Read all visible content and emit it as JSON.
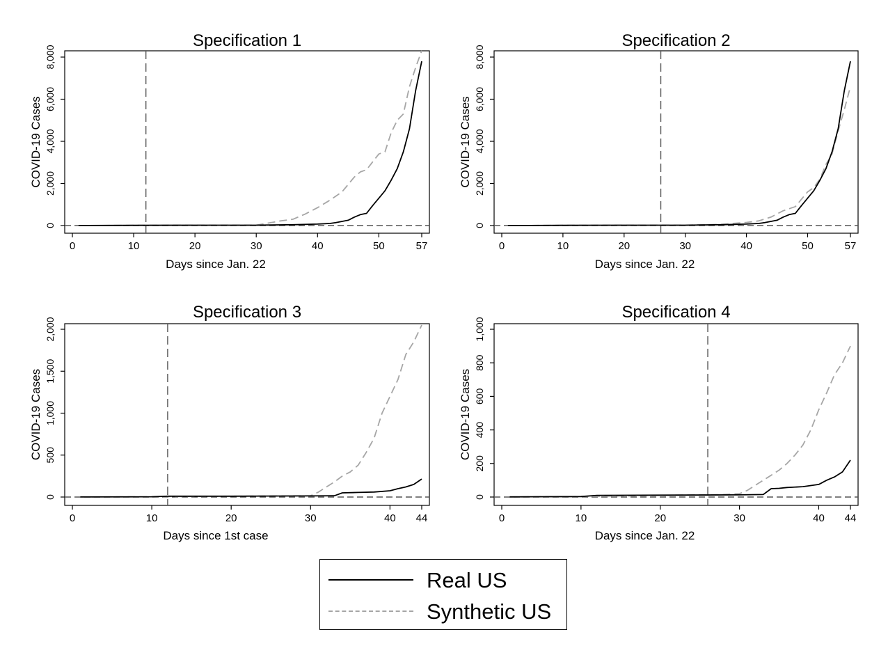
{
  "colors": {
    "real": "#000000",
    "synthetic": "#a6a6a6",
    "axis": "#000000",
    "reference": "#555555"
  },
  "legend": {
    "real_label": "Real US",
    "synthetic_label": "Synthetic US",
    "placement": "bottom-center"
  },
  "chart_data": [
    {
      "type": "line",
      "title": "Specification 1",
      "xlabel": "Days since Jan. 22",
      "ylabel": "COVID-19 Cases",
      "xlim": [
        0,
        57
      ],
      "ylim": [
        0,
        8000
      ],
      "xticks": [
        0,
        10,
        20,
        30,
        40,
        50,
        57
      ],
      "xtick_labels": [
        "0",
        "10",
        "20",
        "30",
        "40",
        "50",
        "57"
      ],
      "yticks": [
        0,
        2000,
        4000,
        6000,
        8000
      ],
      "ytick_labels": [
        "0",
        "2,000",
        "4,000",
        "6,000",
        "8,000"
      ],
      "treatment_day": 12,
      "grid": false,
      "series": [
        {
          "key": "real",
          "name": "Real US",
          "style": "solid",
          "x": [
            1,
            10,
            20,
            30,
            36,
            40,
            42,
            43,
            45,
            46,
            47,
            48,
            49,
            50,
            51,
            52,
            53,
            54,
            55,
            56,
            57
          ],
          "y": [
            1,
            11,
            15,
            17,
            40,
            70,
            100,
            140,
            250,
            400,
            520,
            580,
            950,
            1300,
            1650,
            2150,
            2700,
            3500,
            4600,
            6400,
            7800
          ]
        },
        {
          "key": "synthetic",
          "name": "Synthetic US",
          "style": "dashed",
          "x": [
            1,
            10,
            20,
            30,
            32,
            34,
            36,
            38,
            40,
            42,
            44,
            46,
            47,
            48,
            50,
            51,
            52,
            53,
            54,
            55,
            56,
            57
          ],
          "y": [
            1,
            11,
            15,
            20,
            120,
            220,
            300,
            550,
            850,
            1200,
            1600,
            2300,
            2550,
            2650,
            3400,
            3500,
            4400,
            5000,
            5300,
            6600,
            7500,
            8300
          ]
        }
      ]
    },
    {
      "type": "line",
      "title": "Specification 2",
      "xlabel": "Days since Jan. 22",
      "ylabel": "COVID-19 Cases",
      "xlim": [
        0,
        57
      ],
      "ylim": [
        0,
        8000
      ],
      "xticks": [
        0,
        10,
        20,
        30,
        40,
        50,
        57
      ],
      "xtick_labels": [
        "0",
        "10",
        "20",
        "30",
        "40",
        "50",
        "57"
      ],
      "yticks": [
        0,
        2000,
        4000,
        6000,
        8000
      ],
      "ytick_labels": [
        "0",
        "2,000",
        "4,000",
        "6,000",
        "8,000"
      ],
      "treatment_day": 26,
      "grid": false,
      "series": [
        {
          "key": "real",
          "name": "Real US",
          "style": "solid",
          "x": [
            1,
            10,
            20,
            30,
            36,
            40,
            42,
            43,
            45,
            46,
            47,
            48,
            49,
            50,
            51,
            52,
            53,
            54,
            55,
            56,
            57
          ],
          "y": [
            1,
            11,
            15,
            17,
            40,
            70,
            100,
            140,
            250,
            400,
            520,
            580,
            950,
            1300,
            1650,
            2150,
            2700,
            3500,
            4600,
            6400,
            7800
          ]
        },
        {
          "key": "synthetic",
          "name": "Synthetic US",
          "style": "dashed",
          "x": [
            1,
            10,
            20,
            30,
            36,
            40,
            42,
            44,
            46,
            48,
            50,
            51,
            52,
            53,
            54,
            55,
            56,
            57
          ],
          "y": [
            1,
            11,
            15,
            20,
            60,
            150,
            220,
            400,
            700,
            900,
            1600,
            1800,
            2200,
            2900,
            3400,
            4500,
            5500,
            6600
          ]
        }
      ]
    },
    {
      "type": "line",
      "title": "Specification 3",
      "xlabel": "Days since 1st case",
      "ylabel": "COVID-19 Cases",
      "xlim": [
        0,
        44
      ],
      "ylim": [
        0,
        2000
      ],
      "xticks": [
        0,
        10,
        20,
        30,
        40,
        44
      ],
      "xtick_labels": [
        "0",
        "10",
        "20",
        "30",
        "40",
        "44"
      ],
      "yticks": [
        0,
        500,
        1000,
        1500,
        2000
      ],
      "ytick_labels": [
        "0",
        "500",
        "1,000",
        "1,500",
        "2,000"
      ],
      "treatment_day": 12,
      "grid": false,
      "series": [
        {
          "key": "real",
          "name": "Real US",
          "style": "solid",
          "x": [
            1,
            10,
            12,
            20,
            30,
            33,
            34,
            36,
            38,
            40,
            41,
            42,
            43,
            44
          ],
          "y": [
            1,
            3,
            10,
            10,
            13,
            15,
            50,
            55,
            60,
            75,
            100,
            120,
            150,
            215
          ]
        },
        {
          "key": "synthetic",
          "name": "Synthetic US",
          "style": "dashed",
          "x": [
            1,
            10,
            20,
            30,
            31,
            32,
            33,
            34,
            35,
            36,
            37,
            38,
            39,
            40,
            41,
            42,
            43,
            44
          ],
          "y": [
            1,
            3,
            10,
            15,
            60,
            120,
            180,
            250,
            300,
            380,
            530,
            700,
            1000,
            1200,
            1400,
            1700,
            1850,
            2050
          ]
        }
      ]
    },
    {
      "type": "line",
      "title": "Specification 4",
      "xlabel": "Days since Jan. 22",
      "ylabel": "COVID-19 Cases",
      "xlim": [
        0,
        44
      ],
      "ylim": [
        0,
        1000
      ],
      "xticks": [
        0,
        10,
        20,
        30,
        40,
        44
      ],
      "xtick_labels": [
        "0",
        "10",
        "20",
        "30",
        "40",
        "44"
      ],
      "yticks": [
        0,
        200,
        400,
        600,
        800,
        1000
      ],
      "ytick_labels": [
        "0",
        "200",
        "400",
        "600",
        "800",
        "1,000"
      ],
      "treatment_day": 26,
      "grid": false,
      "series": [
        {
          "key": "real",
          "name": "Real US",
          "style": "solid",
          "x": [
            1,
            10,
            12,
            20,
            30,
            33,
            34,
            35,
            36,
            38,
            40,
            41,
            42,
            43,
            44
          ],
          "y": [
            1,
            3,
            10,
            11,
            13,
            15,
            50,
            52,
            57,
            62,
            75,
            100,
            120,
            150,
            220
          ]
        },
        {
          "key": "synthetic",
          "name": "Synthetic US",
          "style": "dashed",
          "x": [
            1,
            10,
            20,
            28,
            30,
            31,
            32,
            33,
            34,
            35,
            36,
            37,
            38,
            39,
            40,
            41,
            42,
            43,
            44
          ],
          "y": [
            1,
            3,
            10,
            15,
            20,
            40,
            70,
            100,
            130,
            160,
            200,
            250,
            310,
            400,
            520,
            620,
            730,
            800,
            900
          ]
        }
      ]
    }
  ]
}
